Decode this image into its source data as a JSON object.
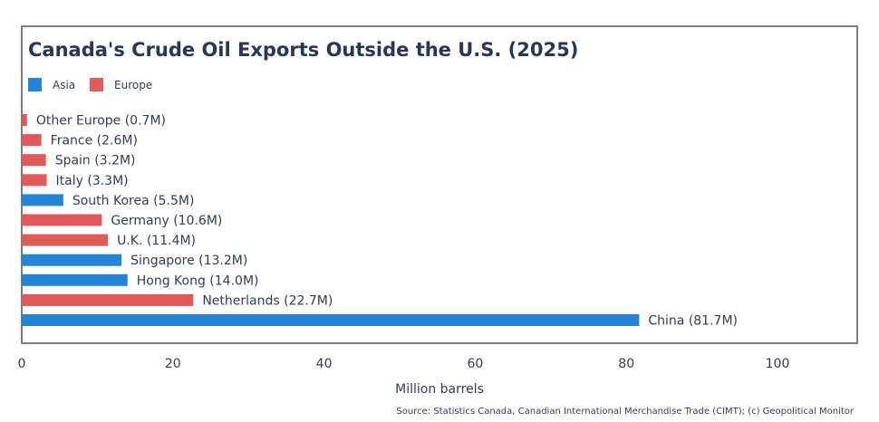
{
  "colors": {
    "Asia": "#2285d7",
    "Europe": "#e05a5a",
    "frame": "#555555",
    "text": "#2f3e55",
    "title": "#253858"
  },
  "chart_data": {
    "type": "bar",
    "orientation": "horizontal",
    "title": "Canada's Crude Oil Exports Outside the U.S. (2025)",
    "xlabel": "Million barrels",
    "ylabel": "",
    "xlim": [
      0,
      110
    ],
    "xticks": [
      0,
      20,
      40,
      60,
      80,
      100
    ],
    "grid": false,
    "legend": {
      "placement": "top-left",
      "entries": [
        "Asia",
        "Europe"
      ]
    },
    "bars": [
      {
        "category": "Other Europe",
        "value": 0.7,
        "region": "Europe",
        "label": "Other Europe (0.7M)"
      },
      {
        "category": "France",
        "value": 2.6,
        "region": "Europe",
        "label": "France (2.6M)"
      },
      {
        "category": "Spain",
        "value": 3.2,
        "region": "Europe",
        "label": "Spain (3.2M)"
      },
      {
        "category": "Italy",
        "value": 3.3,
        "region": "Europe",
        "label": "Italy (3.3M)"
      },
      {
        "category": "South Korea",
        "value": 5.5,
        "region": "Asia",
        "label": "South Korea (5.5M)"
      },
      {
        "category": "Germany",
        "value": 10.6,
        "region": "Europe",
        "label": "Germany (10.6M)"
      },
      {
        "category": "U.K.",
        "value": 11.4,
        "region": "Europe",
        "label": "U.K. (11.4M)"
      },
      {
        "category": "Singapore",
        "value": 13.2,
        "region": "Asia",
        "label": "Singapore (13.2M)"
      },
      {
        "category": "Hong Kong",
        "value": 14.0,
        "region": "Asia",
        "label": "Hong Kong (14.0M)"
      },
      {
        "category": "Netherlands",
        "value": 22.7,
        "region": "Europe",
        "label": "Netherlands (22.7M)"
      },
      {
        "category": "China",
        "value": 81.7,
        "region": "Asia",
        "label": "China (81.7M)"
      }
    ],
    "source": "Source: Statistics Canada, Canadian International Merchandise Trade (CIMT); (c) Geopolitical Monitor"
  }
}
